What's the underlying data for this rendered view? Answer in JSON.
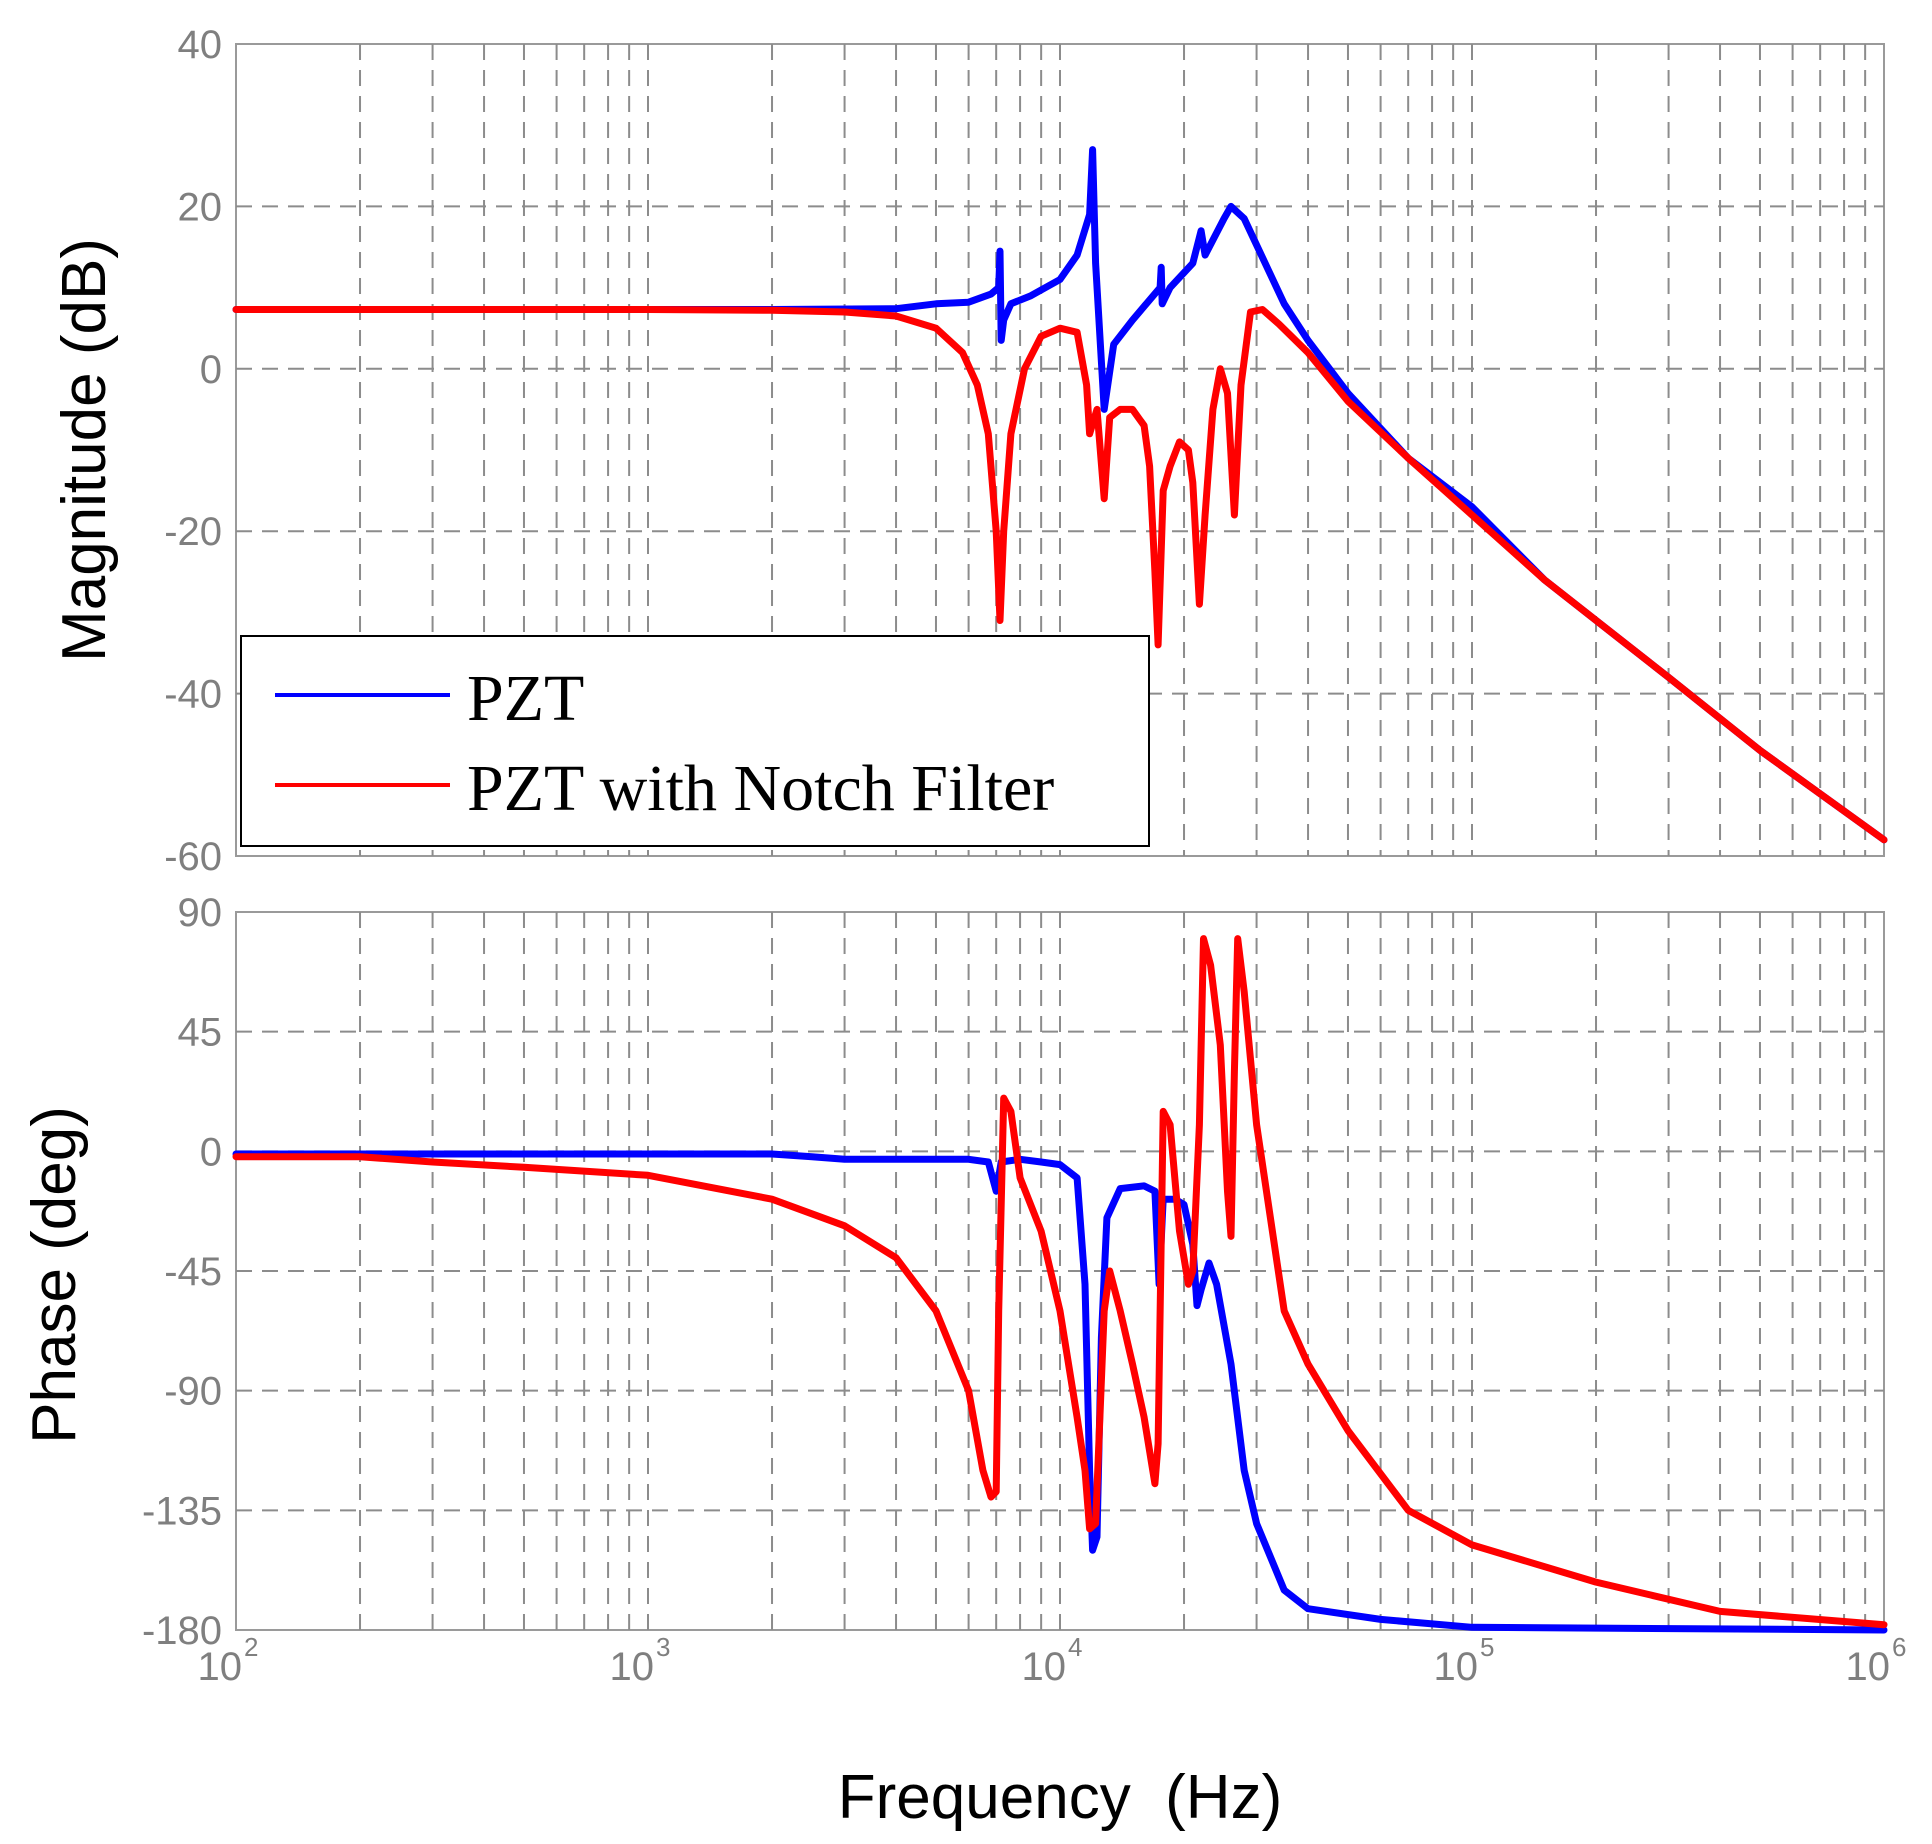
{
  "chart_data": [
    {
      "type": "line",
      "panel": "magnitude",
      "xscale": "log",
      "xlim": [
        100,
        1000000
      ],
      "ylim": [
        -60,
        40
      ],
      "yticks": [
        "40",
        "20",
        "0",
        "-20",
        "-40",
        "-60"
      ],
      "ylabel": "Magnitude (dB)",
      "grid": true,
      "legend": {
        "position": "lower-left",
        "entries": [
          "PZT",
          "PZT with Notch Filter"
        ]
      },
      "series": [
        {
          "name": "PZT",
          "color": "#0000ff",
          "points": [
            [
              100,
              7.3
            ],
            [
              1000,
              7.3
            ],
            [
              2000,
              7.3
            ],
            [
              4000,
              7.4
            ],
            [
              5000,
              8
            ],
            [
              6000,
              8.2
            ],
            [
              6800,
              9.2
            ],
            [
              7100,
              10
            ],
            [
              7150,
              14.5
            ],
            [
              7200,
              3.5
            ],
            [
              7300,
              6
            ],
            [
              7600,
              8
            ],
            [
              8500,
              9
            ],
            [
              10000,
              11
            ],
            [
              11000,
              14
            ],
            [
              11800,
              19
            ],
            [
              12000,
              27
            ],
            [
              12200,
              13
            ],
            [
              12800,
              -5
            ],
            [
              13500,
              3
            ],
            [
              15000,
              6
            ],
            [
              17500,
              10
            ],
            [
              17600,
              12.5
            ],
            [
              17700,
              8
            ],
            [
              18500,
              10
            ],
            [
              21000,
              13
            ],
            [
              22000,
              17
            ],
            [
              22500,
              14
            ],
            [
              25000,
              18.5
            ],
            [
              26000,
              20
            ],
            [
              28000,
              18.5
            ],
            [
              35000,
              8
            ],
            [
              40000,
              3.5
            ],
            [
              50000,
              -3
            ],
            [
              70000,
              -11
            ],
            [
              100000,
              -17
            ],
            [
              150000,
              -26
            ],
            [
              300000,
              -38
            ],
            [
              500000,
              -47
            ],
            [
              1000000,
              -58
            ]
          ]
        },
        {
          "name": "PZT with Notch Filter",
          "color": "#ff0000",
          "points": [
            [
              100,
              7.3
            ],
            [
              1000,
              7.3
            ],
            [
              2000,
              7.2
            ],
            [
              3000,
              7
            ],
            [
              4000,
              6.5
            ],
            [
              5000,
              5
            ],
            [
              5800,
              2
            ],
            [
              6300,
              -2
            ],
            [
              6700,
              -8
            ],
            [
              7000,
              -20
            ],
            [
              7150,
              -31
            ],
            [
              7300,
              -20
            ],
            [
              7600,
              -8
            ],
            [
              8200,
              0
            ],
            [
              9000,
              4
            ],
            [
              10000,
              5
            ],
            [
              11000,
              4.5
            ],
            [
              11600,
              -2
            ],
            [
              11800,
              -8
            ],
            [
              12300,
              -5
            ],
            [
              12800,
              -16
            ],
            [
              13200,
              -6
            ],
            [
              14000,
              -5
            ],
            [
              15000,
              -5
            ],
            [
              16000,
              -7
            ],
            [
              16500,
              -12
            ],
            [
              17000,
              -25
            ],
            [
              17300,
              -34
            ],
            [
              17800,
              -15
            ],
            [
              18500,
              -12
            ],
            [
              19500,
              -9
            ],
            [
              20500,
              -10
            ],
            [
              21000,
              -14
            ],
            [
              21800,
              -29
            ],
            [
              22500,
              -18
            ],
            [
              23500,
              -5
            ],
            [
              24500,
              0
            ],
            [
              25500,
              -3
            ],
            [
              26500,
              -18
            ],
            [
              27500,
              -2
            ],
            [
              29000,
              7
            ],
            [
              31000,
              7.3
            ],
            [
              34000,
              5.5
            ],
            [
              40000,
              2
            ],
            [
              50000,
              -4
            ],
            [
              70000,
              -11
            ],
            [
              100000,
              -18
            ],
            [
              150000,
              -26
            ],
            [
              300000,
              -38
            ],
            [
              500000,
              -47
            ],
            [
              1000000,
              -58
            ]
          ]
        }
      ]
    },
    {
      "type": "line",
      "panel": "phase",
      "xscale": "log",
      "xlim": [
        100,
        1000000
      ],
      "ylim": [
        -180,
        90
      ],
      "yticks": [
        "90",
        "45",
        "0",
        "-45",
        "-90",
        "-135",
        "-180"
      ],
      "ylabel": "Phase (deg)",
      "xlabel": "Frequency  (Hz)",
      "grid": true,
      "series": [
        {
          "name": "PZT",
          "color": "#0000ff",
          "points": [
            [
              100,
              -1
            ],
            [
              2000,
              -1
            ],
            [
              2500,
              -2
            ],
            [
              3000,
              -3
            ],
            [
              6000,
              -3
            ],
            [
              6700,
              -4
            ],
            [
              7000,
              -15
            ],
            [
              7200,
              -4
            ],
            [
              8000,
              -3
            ],
            [
              9000,
              -4
            ],
            [
              10000,
              -5
            ],
            [
              11000,
              -10
            ],
            [
              11500,
              -50
            ],
            [
              11800,
              -120
            ],
            [
              12000,
              -150
            ],
            [
              12300,
              -145
            ],
            [
              12600,
              -70
            ],
            [
              13000,
              -25
            ],
            [
              14000,
              -14
            ],
            [
              16000,
              -13
            ],
            [
              17000,
              -15
            ],
            [
              17400,
              -50
            ],
            [
              17800,
              -18
            ],
            [
              19000,
              -18
            ],
            [
              20000,
              -20
            ],
            [
              21000,
              -35
            ],
            [
              21500,
              -58
            ],
            [
              22000,
              -52
            ],
            [
              23000,
              -42
            ],
            [
              24000,
              -50
            ],
            [
              26000,
              -80
            ],
            [
              28000,
              -120
            ],
            [
              30000,
              -140
            ],
            [
              35000,
              -165
            ],
            [
              40000,
              -172
            ],
            [
              60000,
              -176
            ],
            [
              100000,
              -179
            ],
            [
              1000000,
              -180
            ]
          ]
        },
        {
          "name": "PZT with Notch Filter",
          "color": "#ff0000",
          "points": [
            [
              100,
              -2
            ],
            [
              200,
              -2
            ],
            [
              300,
              -4
            ],
            [
              500,
              -6
            ],
            [
              1000,
              -9
            ],
            [
              2000,
              -18
            ],
            [
              3000,
              -28
            ],
            [
              4000,
              -40
            ],
            [
              5000,
              -60
            ],
            [
              6000,
              -90
            ],
            [
              6500,
              -120
            ],
            [
              6800,
              -130
            ],
            [
              7000,
              -128
            ],
            [
              7100,
              -60
            ],
            [
              7300,
              20
            ],
            [
              7600,
              15
            ],
            [
              8000,
              -10
            ],
            [
              9000,
              -30
            ],
            [
              10000,
              -60
            ],
            [
              11000,
              -100
            ],
            [
              11500,
              -120
            ],
            [
              11800,
              -142
            ],
            [
              12200,
              -140
            ],
            [
              12800,
              -60
            ],
            [
              13200,
              -45
            ],
            [
              14000,
              -60
            ],
            [
              15000,
              -80
            ],
            [
              16000,
              -100
            ],
            [
              17000,
              -125
            ],
            [
              17300,
              -110
            ],
            [
              17800,
              15
            ],
            [
              18500,
              10
            ],
            [
              19500,
              -30
            ],
            [
              20500,
              -50
            ],
            [
              21000,
              -45
            ],
            [
              21800,
              10
            ],
            [
              22300,
              80
            ],
            [
              23200,
              70
            ],
            [
              24500,
              40
            ],
            [
              25500,
              -15
            ],
            [
              26000,
              -32
            ],
            [
              26500,
              30
            ],
            [
              27000,
              80
            ],
            [
              28000,
              60
            ],
            [
              30000,
              10
            ],
            [
              35000,
              -60
            ],
            [
              40000,
              -80
            ],
            [
              50000,
              -105
            ],
            [
              70000,
              -135
            ],
            [
              100000,
              -148
            ],
            [
              200000,
              -162
            ],
            [
              400000,
              -173
            ],
            [
              1000000,
              -178
            ]
          ]
        }
      ]
    }
  ],
  "xaxis": {
    "decades": [
      {
        "base": "10",
        "exp": "2"
      },
      {
        "base": "10",
        "exp": "3"
      },
      {
        "base": "10",
        "exp": "4"
      },
      {
        "base": "10",
        "exp": "5"
      },
      {
        "base": "10",
        "exp": "6"
      }
    ]
  }
}
